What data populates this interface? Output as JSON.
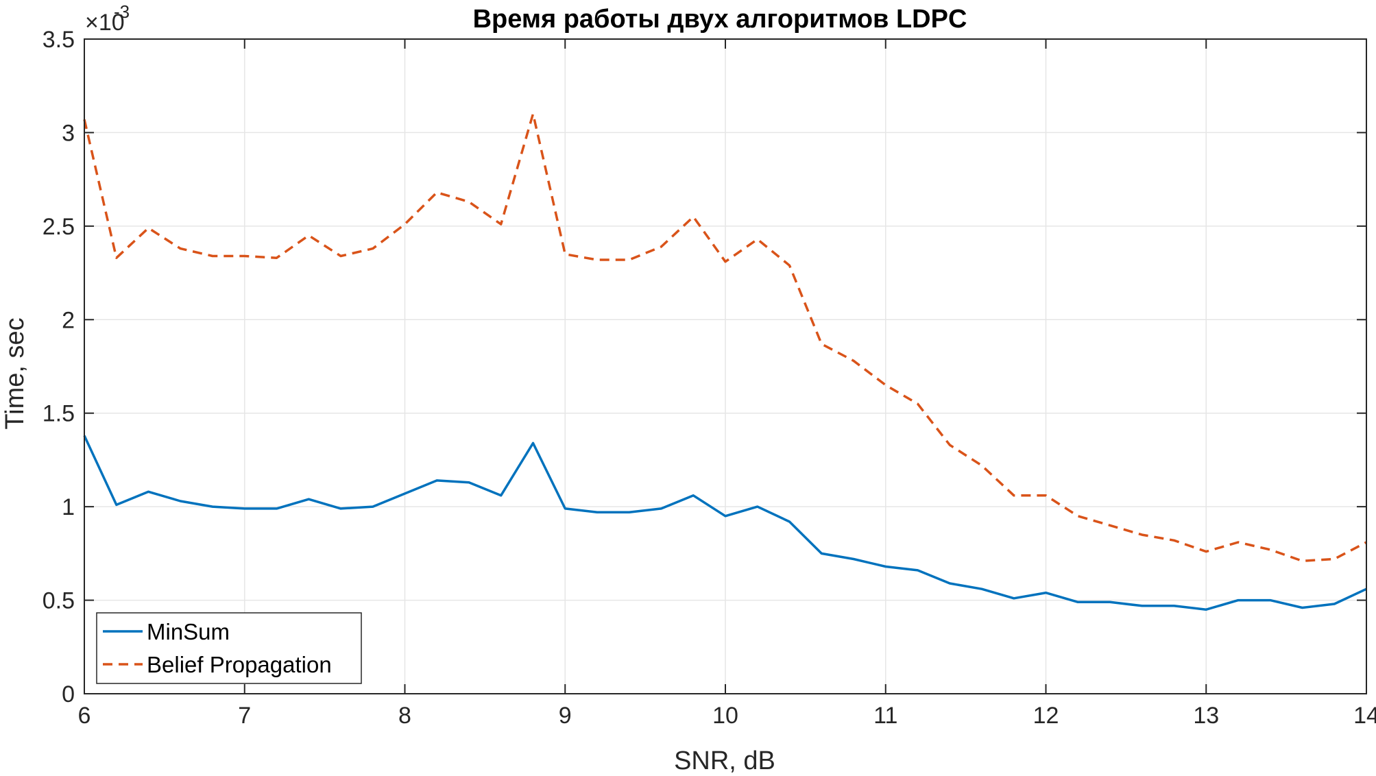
{
  "chart_data": {
    "type": "line",
    "title": "Время работы двух алгоритмов LDPC",
    "xlabel": "SNR, dB",
    "ylabel": "Time, sec",
    "y_exponent_label": "×10",
    "y_exponent_power": "-3",
    "xlim": [
      6,
      14
    ],
    "ylim": [
      0,
      3.5
    ],
    "xticks": [
      6,
      7,
      8,
      9,
      10,
      11,
      12,
      13,
      14
    ],
    "xtick_labels": [
      "6",
      "7",
      "8",
      "9",
      "10",
      "11",
      "12",
      "13",
      "14"
    ],
    "yticks": [
      0,
      0.5,
      1,
      1.5,
      2,
      2.5,
      3,
      3.5
    ],
    "ytick_labels": [
      "0",
      "0.5",
      "1",
      "1.5",
      "2",
      "2.5",
      "3",
      "3.5"
    ],
    "grid": true,
    "legend_position": "bottom-left",
    "x": [
      6.0,
      6.2,
      6.4,
      6.6,
      6.8,
      7.0,
      7.2,
      7.4,
      7.6,
      7.8,
      8.0,
      8.2,
      8.4,
      8.6,
      8.8,
      9.0,
      9.2,
      9.4,
      9.6,
      9.8,
      10.0,
      10.2,
      10.4,
      10.6,
      10.8,
      11.0,
      11.2,
      11.4,
      11.6,
      11.8,
      12.0,
      12.2,
      12.4,
      12.6,
      12.8,
      13.0,
      13.2,
      13.4,
      13.6,
      13.8,
      14.0
    ],
    "series": [
      {
        "name": "MinSum",
        "color": "#0072BD",
        "style": "solid",
        "values": [
          1.38,
          1.01,
          1.08,
          1.03,
          1.0,
          0.99,
          0.99,
          1.04,
          0.99,
          1.0,
          1.07,
          1.14,
          1.13,
          1.06,
          1.34,
          0.99,
          0.97,
          0.97,
          0.99,
          1.06,
          0.95,
          1.0,
          0.92,
          0.75,
          0.72,
          0.68,
          0.66,
          0.59,
          0.56,
          0.51,
          0.54,
          0.49,
          0.49,
          0.47,
          0.47,
          0.45,
          0.5,
          0.5,
          0.46,
          0.48,
          0.56
        ]
      },
      {
        "name": "Belief Propagation",
        "color": "#D95319",
        "style": "dashed",
        "values": [
          3.07,
          2.33,
          2.49,
          2.38,
          2.34,
          2.34,
          2.33,
          2.45,
          2.34,
          2.38,
          2.51,
          2.68,
          2.63,
          2.51,
          3.1,
          2.35,
          2.32,
          2.32,
          2.39,
          2.55,
          2.31,
          2.43,
          2.29,
          1.87,
          1.78,
          1.65,
          1.55,
          1.33,
          1.22,
          1.06,
          1.06,
          0.95,
          0.9,
          0.85,
          0.82,
          0.76,
          0.81,
          0.77,
          0.71,
          0.72,
          0.81
        ]
      }
    ]
  }
}
